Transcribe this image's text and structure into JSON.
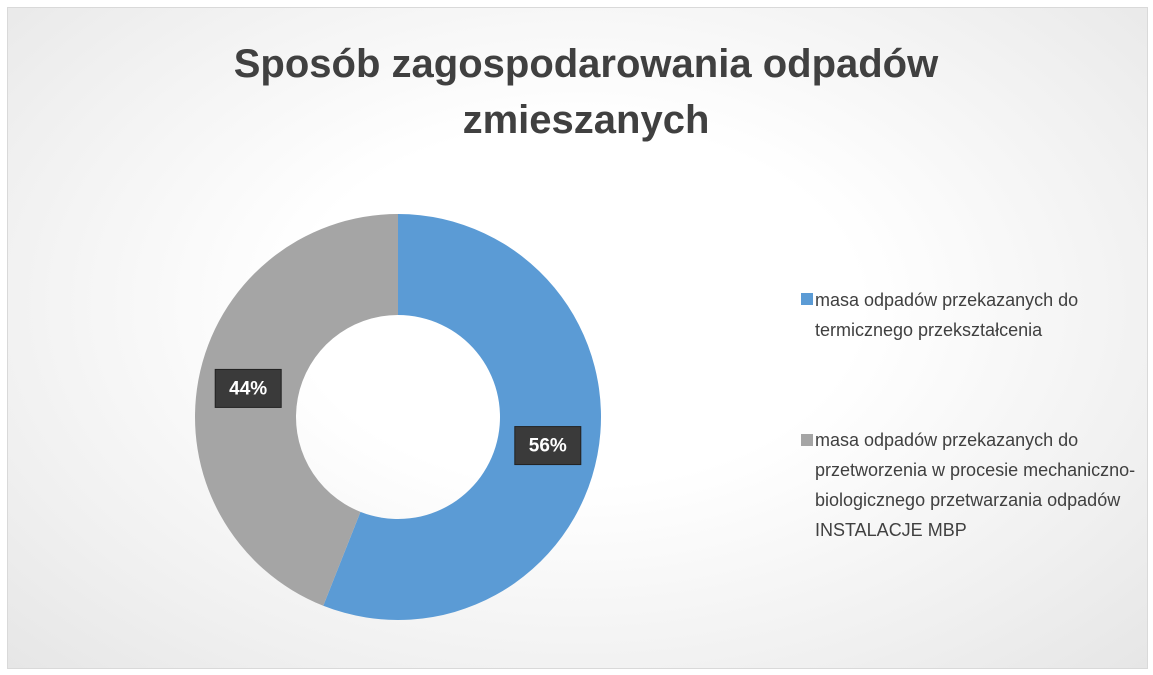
{
  "chart_data": {
    "type": "donut",
    "title": "Sposób zagospodarowania odpadów zmieszanych",
    "categories": [
      "masa odpadów przekazanych do termicznego przekształcenia",
      "masa odpadów przekazanych do przetworzenia w procesie mechaniczno-biologicznego przetwarzania odpadów INSTALACJE MBP"
    ],
    "values": [
      56,
      44
    ],
    "value_labels": [
      "56%",
      "44%"
    ],
    "colors": [
      "#5b9bd5",
      "#a5a5a5"
    ],
    "legend": "right"
  }
}
